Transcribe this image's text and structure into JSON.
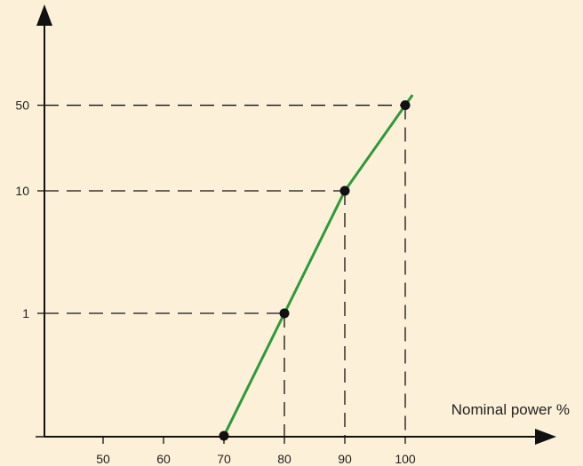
{
  "chart_data": {
    "type": "line",
    "title": "",
    "xlabel": "Nominal power %",
    "ylabel": "",
    "x_ticks": [
      50,
      60,
      70,
      80,
      90,
      100
    ],
    "y_ticks": [
      1,
      10,
      50
    ],
    "y_scale": "log",
    "xlim": [
      42,
      125
    ],
    "series": [
      {
        "color": "#2e9a3a",
        "x": [
          70,
          80,
          90,
          100
        ],
        "y": [
          0.1,
          1,
          10,
          50
        ]
      }
    ],
    "reference_lines": "dashed guides from the 80, 90 and 100 points to both axes",
    "grid": false,
    "legend": "none"
  }
}
